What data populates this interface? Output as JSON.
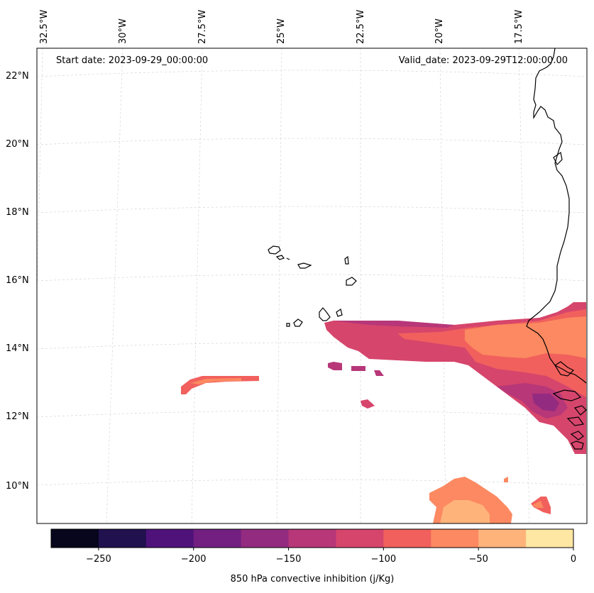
{
  "header": {
    "start_date": "Start date: 2023-09-29_00:00:00",
    "valid_date": "Valid_date: 2023-09-29T12:00:00.00"
  },
  "map": {
    "lon_labels": [
      "32.5°W",
      "30°W",
      "27.5°W",
      "25°W",
      "22.5°W",
      "20°W",
      "17.5°W"
    ],
    "lat_labels": [
      "22°N",
      "20°N",
      "18°N",
      "16°N",
      "14°N",
      "12°N",
      "10°N"
    ],
    "gridlines": true,
    "coastline_color": "#000000"
  },
  "colorbar": {
    "label": "850 hPa convective inhibition (j/Kg)",
    "ticks": [
      "−250",
      "−200",
      "−150",
      "−100",
      "−50",
      "0"
    ],
    "levels": [
      -275,
      -250,
      -225,
      -200,
      -175,
      -150,
      -125,
      -100,
      -75,
      -50,
      -25,
      0
    ],
    "colors": [
      "#07061c",
      "#21114e",
      "#4f127b",
      "#721f81",
      "#932b80",
      "#b73779",
      "#d6456c",
      "#f1605d",
      "#fc8961",
      "#feb37b",
      "#fee6a3"
    ]
  },
  "cin_colors": {
    "minus_150": "#b73779",
    "minus_125": "#d6456c",
    "minus_100": "#f1605d",
    "minus_75": "#fc8961",
    "minus_50": "#feb37b",
    "minus_175": "#932b80"
  }
}
